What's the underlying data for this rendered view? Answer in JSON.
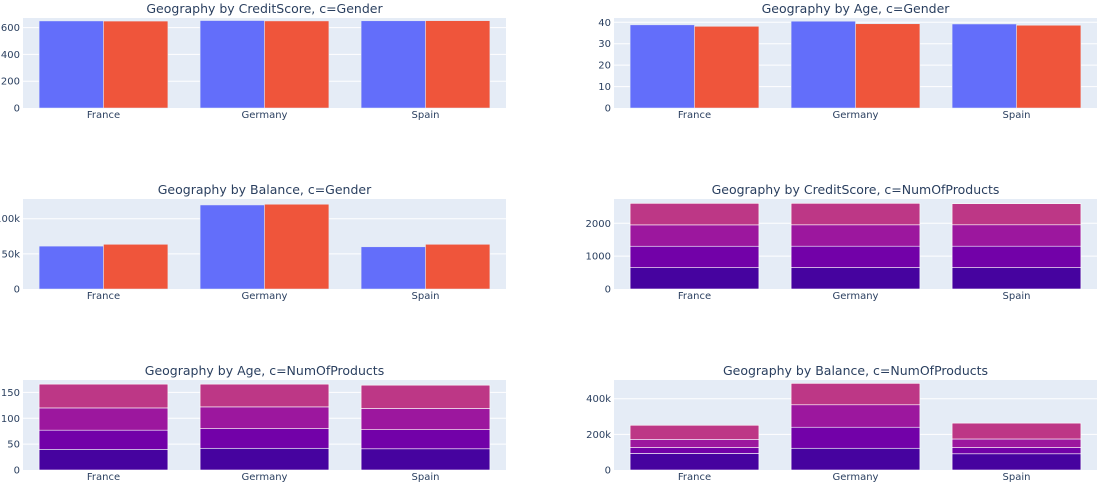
{
  "colors": {
    "plot_bg": "#e5ecf6",
    "grid": "#ffffff",
    "text": "#2a3f5f",
    "gender": [
      "#636efa",
      "#ef553b"
    ],
    "products": [
      "#46039f",
      "#7201a8",
      "#9c179e",
      "#bd3786"
    ]
  },
  "chart_data": [
    {
      "type": "bar",
      "barmode": "group",
      "title": "Geography by CreditScore, c=Gender",
      "categories": [
        "France",
        "Germany",
        "Spain"
      ],
      "series": [
        {
          "values": [
            650,
            653,
            651
          ]
        },
        {
          "values": [
            649,
            650,
            652
          ]
        }
      ],
      "ylim": [
        0,
        672
      ],
      "yticks": [
        0,
        200,
        400,
        600
      ],
      "ytick_labels": [
        "0",
        "200",
        "400",
        "600"
      ],
      "grid": true
    },
    {
      "type": "bar",
      "barmode": "group",
      "title": "Geography by Age, c=Gender",
      "categories": [
        "France",
        "Germany",
        "Spain"
      ],
      "series": [
        {
          "values": [
            38.8,
            40.5,
            39.2
          ]
        },
        {
          "values": [
            38.1,
            39.3,
            38.6
          ]
        }
      ],
      "ylim": [
        0,
        42
      ],
      "yticks": [
        0,
        10,
        20,
        30,
        40
      ],
      "ytick_labels": [
        "0",
        "10",
        "20",
        "30",
        "40"
      ],
      "grid": true
    },
    {
      "type": "bar",
      "barmode": "group",
      "title": "Geography by Balance, c=Gender",
      "categories": [
        "France",
        "Germany",
        "Spain"
      ],
      "series": [
        {
          "values": [
            61000,
            119500,
            60000
          ]
        },
        {
          "values": [
            63500,
            120500,
            63500
          ]
        }
      ],
      "ylim": [
        0,
        128000
      ],
      "yticks": [
        0,
        50000,
        100000
      ],
      "ytick_labels": [
        "0",
        "50k",
        "100k"
      ],
      "grid": true
    },
    {
      "type": "bar",
      "barmode": "stack",
      "title": "Geography by CreditScore, c=NumOfProducts",
      "categories": [
        "France",
        "Germany",
        "Spain"
      ],
      "series": [
        {
          "values": [
            650,
            652,
            651
          ]
        },
        {
          "values": [
            652,
            651,
            652
          ]
        },
        {
          "values": [
            650,
            651,
            652
          ]
        },
        {
          "values": [
            655,
            654,
            643
          ]
        }
      ],
      "ylim": [
        0,
        2740
      ],
      "yticks": [
        0,
        1000,
        2000
      ],
      "ytick_labels": [
        "0",
        "1000",
        "2000"
      ],
      "grid": true
    },
    {
      "type": "bar",
      "barmode": "stack",
      "title": "Geography by Age, c=NumOfProducts",
      "categories": [
        "France",
        "Germany",
        "Spain"
      ],
      "series": [
        {
          "values": [
            40,
            42,
            41
          ]
        },
        {
          "values": [
            37,
            38,
            37
          ]
        },
        {
          "values": [
            43,
            42,
            41
          ]
        },
        {
          "values": [
            46,
            44,
            45
          ]
        }
      ],
      "ylim": [
        0,
        174
      ],
      "yticks": [
        0,
        50,
        100,
        150
      ],
      "ytick_labels": [
        "0",
        "50",
        "100",
        "150"
      ],
      "grid": true
    },
    {
      "type": "bar",
      "barmode": "stack",
      "title": "Geography by Balance, c=NumOfProducts",
      "categories": [
        "France",
        "Germany",
        "Spain"
      ],
      "series": [
        {
          "values": [
            93000,
            122000,
            91000
          ]
        },
        {
          "values": [
            33000,
            118000,
            35000
          ]
        },
        {
          "values": [
            46000,
            126000,
            48000
          ]
        },
        {
          "values": [
            79000,
            120000,
            89000
          ]
        }
      ],
      "ylim": [
        0,
        505000
      ],
      "yticks": [
        0,
        200000,
        400000
      ],
      "ytick_labels": [
        "0",
        "200k",
        "400k"
      ],
      "grid": true
    }
  ]
}
